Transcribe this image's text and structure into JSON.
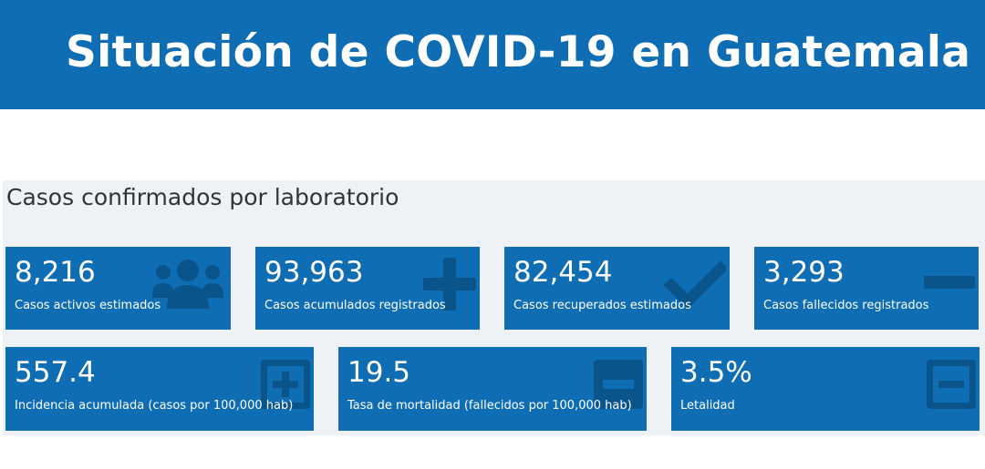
{
  "header": {
    "title": "Situación de COVID-19 en Guatemala"
  },
  "panel": {
    "title": "Casos confirmados por laboratorio"
  },
  "colors": {
    "card_bg": "#0f6db4",
    "icon": "#0a548c",
    "panel_bg": "#eef2f7"
  },
  "cards": [
    {
      "value": "8,216",
      "label": "Casos activos estimados",
      "icon": "users-icon"
    },
    {
      "value": "93,963",
      "label": "Casos acumulados registrados",
      "icon": "plus-icon"
    },
    {
      "value": "82,454",
      "label": "Casos recuperados estimados",
      "icon": "check-icon"
    },
    {
      "value": "3,293",
      "label": "Casos fallecidos registrados",
      "icon": "minus-icon"
    },
    {
      "value": "557.4",
      "label": "Incidencia acumulada (casos por 100,000 hab)",
      "icon": "plus-square-icon"
    },
    {
      "value": "19.5",
      "label": "Tasa de mortalidad (fallecidos por 100,000 hab)",
      "icon": "minus-square-filled-icon"
    },
    {
      "value": "3.5%",
      "label": "Letalidad",
      "icon": "minus-square-icon"
    }
  ]
}
